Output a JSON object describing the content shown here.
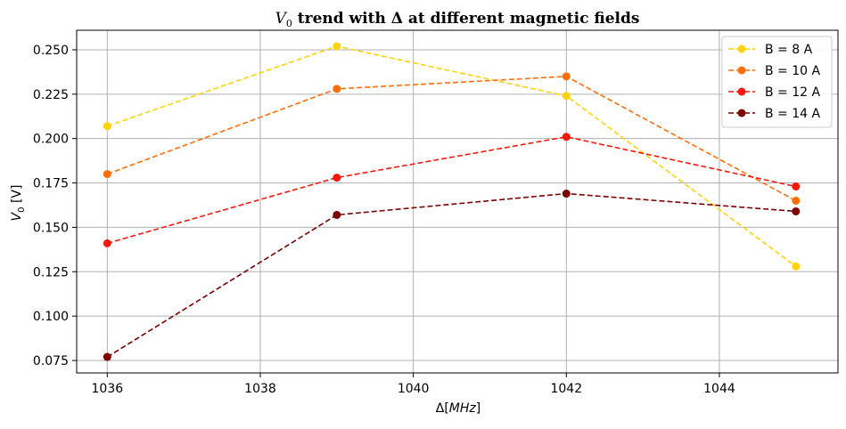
{
  "chart_data": {
    "type": "line",
    "title": "V0 trend with Δ at different magnetic fields",
    "xlabel": "Δ[MHz]",
    "ylabel": "V0 [V]",
    "x": [
      1036,
      1039,
      1042,
      1045
    ],
    "xlim": [
      1035.6,
      1045.55
    ],
    "ylim": [
      0.068,
      0.261
    ],
    "xticks": [
      1036,
      1038,
      1040,
      1042,
      1044
    ],
    "yticks": [
      0.075,
      0.1,
      0.125,
      0.15,
      0.175,
      0.2,
      0.225,
      0.25
    ],
    "grid": true,
    "legend_position": "top-right",
    "series": [
      {
        "name": "B = 8 A",
        "color": "#ffd20a",
        "values": [
          0.207,
          0.252,
          0.224,
          0.128
        ]
      },
      {
        "name": "B = 10 A",
        "color": "#ff6e0a",
        "values": [
          0.18,
          0.228,
          0.235,
          0.165
        ]
      },
      {
        "name": "B = 12 A",
        "color": "#f5190d",
        "values": [
          0.141,
          0.178,
          0.201,
          0.173
        ]
      },
      {
        "name": "B = 14 A",
        "color": "#7d0000",
        "values": [
          0.077,
          0.157,
          0.169,
          0.159
        ]
      }
    ]
  }
}
